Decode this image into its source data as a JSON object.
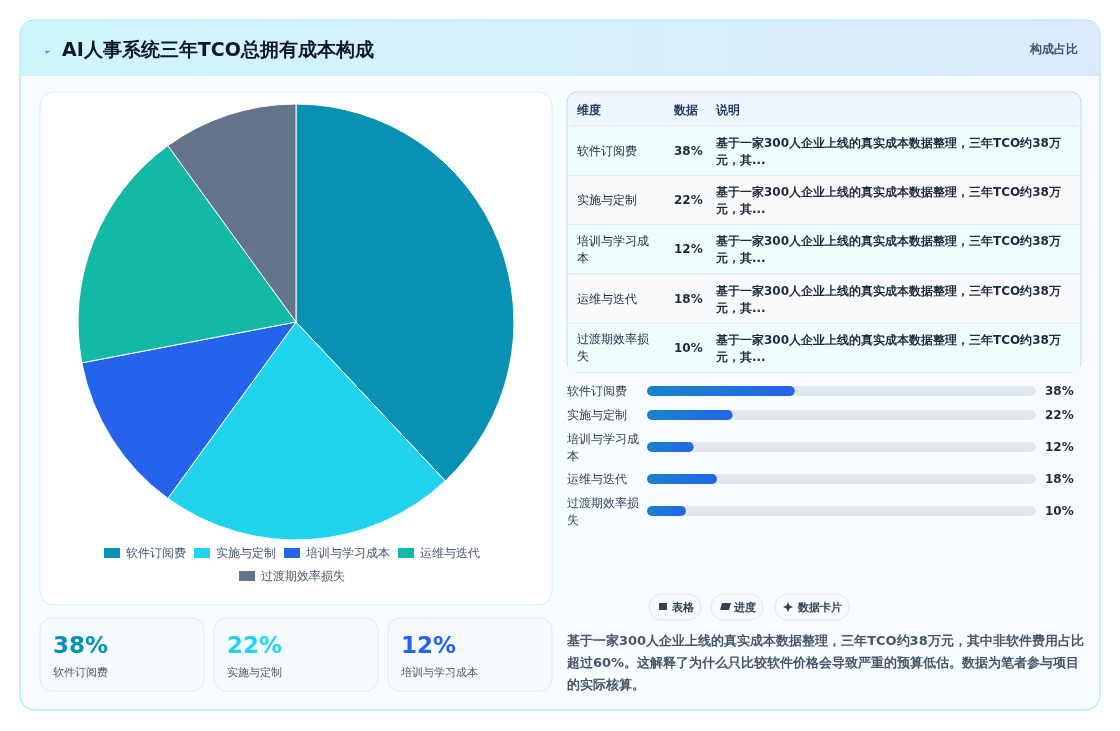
{
  "chart_data": [
    {
      "type": "pie",
      "title": "AI人事系统三年TCO总拥有成本构成",
      "categories": [
        "软件订阅费",
        "实施与定制",
        "培训与学习成本",
        "运维与迭代",
        "过渡期效率损失"
      ],
      "values": [
        38,
        22,
        12,
        18,
        10
      ],
      "colors": [
        "#0891b2",
        "#22d3ee",
        "#2563eb",
        "#14b8a6",
        "#64748b"
      ],
      "legend": "bottom",
      "annotations": [
        "构成占比",
        "表格",
        "进度",
        "数据卡片",
        "基于一家300人企业上线的真实成本数据整理，三年TCO约38万元，其中非软件费用占比超过60%。这解释了为什么只比较软件价格会导致严重的预算低估。数据为笔者参与项目的实际核算。"
      ]
    },
    {
      "type": "other",
      "categories": [
        "软件订阅费",
        "实施与定制",
        "培训与学习成本",
        "运维与迭代",
        "过渡期效率损失"
      ],
      "value_labels": [
        "38%",
        "22%",
        "12%",
        "18%",
        "10%"
      ],
      "annotations": [
        "维度",
        "数据",
        "说明",
        "基于一家300人企业上线的真实成本数据整理，三年TCO约38万元，其...",
        "基于一家300人企业上线的真实成本数据整理，三年TCO约38万元，其...",
        "基于一家300人企业上线的真实成本数据整理，三年TCO约38万元，其...",
        "基于一家300人企业上线的真实成本数据整理，三年TCO约38万元，其...",
        "基于一家300人企业上线的真实成本数据整理，三年TCO约38万元，其..."
      ]
    },
    {
      "type": "bar",
      "orientation": "horizontal",
      "categories": [
        "软件订阅费",
        "实施与定制",
        "培训与学习成本",
        "运维与迭代",
        "过渡期效率损失"
      ],
      "values": [
        38,
        22,
        12,
        18,
        10
      ],
      "value_labels": [
        "38%",
        "22%",
        "12%",
        "18%",
        "10%"
      ],
      "color": "#1686c8",
      "xlim": [
        0,
        100
      ]
    },
    {
      "type": "other",
      "categories": [
        "软件订阅费",
        "实施与定制",
        "培训与学习成本"
      ],
      "value_labels": [
        "38%",
        "22%",
        "12%"
      ],
      "colors": [
        "#0891b2",
        "#22d3ee",
        "#2563eb"
      ]
    }
  ]
}
